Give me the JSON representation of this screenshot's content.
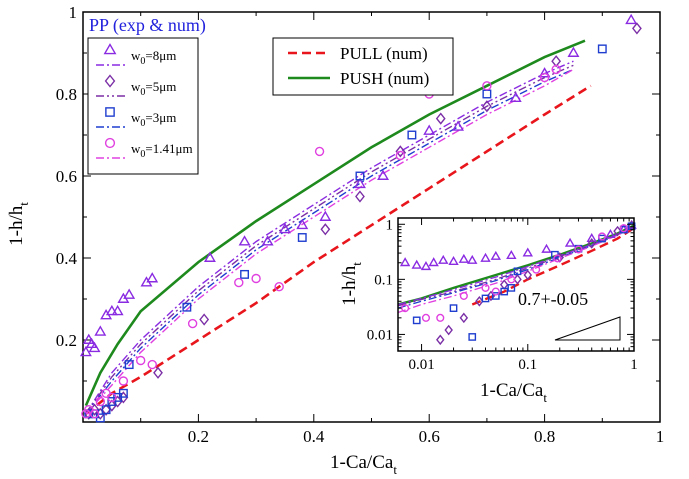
{
  "chart_data": {
    "type": "scatter",
    "title": "PP (exp & num)",
    "xlabel_main": "1-Ca/Ca",
    "xlabel_sub": "t",
    "ylabel_main": "1-h/h",
    "ylabel_sub": "t",
    "xlim": [
      0,
      1
    ],
    "ylim": [
      0,
      1
    ],
    "xticks": [
      0.2,
      0.4,
      0.6,
      0.8,
      1
    ],
    "xtick_labels": [
      "0.2",
      "0.4",
      "0.6",
      "0.8",
      "1"
    ],
    "yticks": [
      0.2,
      0.4,
      0.6,
      0.8,
      1
    ],
    "ytick_labels": [
      "0.2",
      "0.4",
      "0.6",
      "0.8",
      "1"
    ],
    "colors": {
      "purple": "#8a2be2",
      "darkpurple": "#7b2fa6",
      "blue": "#1f3ecf",
      "magenta": "#e040e0",
      "red": "#e8161c",
      "green": "#1e8a1e"
    },
    "legend_markers": {
      "items": [
        {
          "label_pre": "w",
          "label_sub": "0",
          "label_post": "=8μm",
          "marker": "triangle",
          "color": "#8a2be2",
          "line": "dashdot"
        },
        {
          "label_pre": "w",
          "label_sub": "0",
          "label_post": "=5μm",
          "marker": "diamond",
          "color": "#7b2fa6",
          "line": "dashdotdot"
        },
        {
          "label_pre": "w",
          "label_sub": "0",
          "label_post": "=3μm",
          "marker": "square",
          "color": "#1f3ecf",
          "line": "dashdot"
        },
        {
          "label_pre": "w",
          "label_sub": "0",
          "label_post": "=1.41μm",
          "marker": "circle",
          "color": "#e040e0",
          "line": "dashdot"
        }
      ]
    },
    "legend_lines": {
      "items": [
        {
          "label": "PULL (num)",
          "color": "#e8161c",
          "style": "dashed"
        },
        {
          "label": "PUSH (num)",
          "color": "#1e8a1e",
          "style": "solid"
        }
      ]
    },
    "series": [
      {
        "marker": "triangle",
        "color": "#8a2be2",
        "x": [
          0.005,
          0.01,
          0.015,
          0.02,
          0.03,
          0.04,
          0.05,
          0.06,
          0.07,
          0.08,
          0.11,
          0.12,
          0.22,
          0.28,
          0.32,
          0.35,
          0.38,
          0.42,
          0.48,
          0.52,
          0.6,
          0.65,
          0.75,
          0.8,
          0.85,
          0.95
        ],
        "y": [
          0.17,
          0.2,
          0.19,
          0.18,
          0.22,
          0.26,
          0.27,
          0.27,
          0.3,
          0.31,
          0.34,
          0.35,
          0.4,
          0.44,
          0.44,
          0.47,
          0.48,
          0.5,
          0.58,
          0.6,
          0.71,
          0.72,
          0.79,
          0.85,
          0.9,
          0.98
        ]
      },
      {
        "marker": "diamond",
        "color": "#7b2fa6",
        "x": [
          0.01,
          0.02,
          0.03,
          0.04,
          0.05,
          0.06,
          0.07,
          0.13,
          0.21,
          0.42,
          0.48,
          0.55,
          0.62,
          0.7,
          0.82,
          0.96
        ],
        "y": [
          0.02,
          0.03,
          0.02,
          0.03,
          0.04,
          0.05,
          0.06,
          0.12,
          0.25,
          0.47,
          0.55,
          0.66,
          0.74,
          0.77,
          0.88,
          0.96
        ]
      },
      {
        "marker": "square",
        "color": "#1f3ecf",
        "x": [
          0.01,
          0.02,
          0.03,
          0.04,
          0.05,
          0.06,
          0.07,
          0.08,
          0.18,
          0.28,
          0.38,
          0.48,
          0.57,
          0.7,
          0.9
        ],
        "y": [
          0.02,
          0.02,
          0.01,
          0.03,
          0.05,
          0.06,
          0.07,
          0.14,
          0.28,
          0.36,
          0.45,
          0.6,
          0.7,
          0.8,
          0.91
        ]
      },
      {
        "marker": "circle",
        "color": "#e040e0",
        "x": [
          0.005,
          0.01,
          0.02,
          0.03,
          0.04,
          0.05,
          0.07,
          0.1,
          0.12,
          0.19,
          0.27,
          0.3,
          0.34,
          0.41,
          0.55,
          0.6,
          0.7,
          0.8,
          0.82
        ],
        "y": [
          0.02,
          0.03,
          0.02,
          0.05,
          0.07,
          0.06,
          0.1,
          0.15,
          0.14,
          0.24,
          0.34,
          0.35,
          0.33,
          0.66,
          0.65,
          0.8,
          0.82,
          0.84,
          0.86
        ]
      }
    ],
    "curves": [
      {
        "name": "PULL (num)",
        "color": "#e8161c",
        "style": "dashed",
        "x": [
          0.005,
          0.05,
          0.1,
          0.2,
          0.3,
          0.4,
          0.5,
          0.6,
          0.7,
          0.8,
          0.88
        ],
        "y": [
          0.02,
          0.07,
          0.11,
          0.2,
          0.29,
          0.39,
          0.48,
          0.57,
          0.66,
          0.75,
          0.82
        ]
      },
      {
        "name": "PUSH (num)",
        "color": "#1e8a1e",
        "style": "solid",
        "x": [
          0.005,
          0.03,
          0.06,
          0.1,
          0.2,
          0.3,
          0.4,
          0.5,
          0.6,
          0.7,
          0.8,
          0.87
        ],
        "y": [
          0.04,
          0.12,
          0.19,
          0.27,
          0.39,
          0.49,
          0.58,
          0.67,
          0.75,
          0.82,
          0.89,
          0.93
        ]
      },
      {
        "name": "w0=8μm",
        "color": "#8a2be2",
        "style": "dashdot",
        "x": [
          0.005,
          0.05,
          0.1,
          0.2,
          0.3,
          0.4,
          0.5,
          0.6,
          0.7,
          0.8,
          0.85
        ],
        "y": [
          0.02,
          0.12,
          0.2,
          0.33,
          0.44,
          0.53,
          0.62,
          0.7,
          0.78,
          0.85,
          0.88
        ]
      },
      {
        "name": "w0=5μm",
        "color": "#7b2fa6",
        "style": "dashdotdot",
        "x": [
          0.005,
          0.05,
          0.1,
          0.2,
          0.3,
          0.4,
          0.5,
          0.6,
          0.7,
          0.8,
          0.85
        ],
        "y": [
          0.02,
          0.11,
          0.19,
          0.32,
          0.43,
          0.52,
          0.61,
          0.69,
          0.77,
          0.84,
          0.87
        ]
      },
      {
        "name": "w0=3μm",
        "color": "#1f3ecf",
        "style": "dashdot",
        "x": [
          0.005,
          0.05,
          0.1,
          0.2,
          0.3,
          0.4,
          0.5,
          0.6,
          0.7,
          0.8,
          0.85
        ],
        "y": [
          0.02,
          0.1,
          0.18,
          0.31,
          0.42,
          0.51,
          0.6,
          0.68,
          0.76,
          0.83,
          0.86
        ]
      },
      {
        "name": "w0=1.41μm",
        "color": "#e040e0",
        "style": "dashdot",
        "x": [
          0.005,
          0.05,
          0.1,
          0.2,
          0.3,
          0.4,
          0.5,
          0.6,
          0.7,
          0.8,
          0.85
        ],
        "y": [
          0.02,
          0.09,
          0.17,
          0.3,
          0.41,
          0.5,
          0.59,
          0.67,
          0.75,
          0.82,
          0.86
        ]
      }
    ],
    "inset": {
      "type": "scatter",
      "scale": "log-log",
      "xlim": [
        0.006,
        1
      ],
      "ylim": [
        0.005,
        1.3
      ],
      "xticks": [
        0.01,
        0.1,
        1
      ],
      "xtick_labels": [
        "0.01",
        "0.1",
        "1"
      ],
      "yticks": [
        0.01,
        0.1,
        1
      ],
      "ytick_labels": [
        "0.01",
        "0.1",
        "1"
      ],
      "xlabel_main": "1-Ca/Ca",
      "xlabel_sub": "t",
      "ylabel_main": "1-h/h",
      "ylabel_sub": "t",
      "slope_label": "0.7+-0.05",
      "series": [
        {
          "marker": "triangle",
          "color": "#8a2be2",
          "x": [
            0.007,
            0.009,
            0.011,
            0.013,
            0.016,
            0.02,
            0.025,
            0.03,
            0.04,
            0.05,
            0.07,
            0.1,
            0.15,
            0.25,
            0.4,
            0.6,
            0.8,
            0.95
          ],
          "y": [
            0.2,
            0.18,
            0.17,
            0.2,
            0.22,
            0.21,
            0.23,
            0.22,
            0.24,
            0.26,
            0.27,
            0.3,
            0.35,
            0.45,
            0.55,
            0.65,
            0.8,
            0.95
          ]
        },
        {
          "marker": "diamond",
          "color": "#7b2fa6",
          "x": [
            0.015,
            0.018,
            0.025,
            0.035,
            0.045,
            0.06,
            0.08,
            0.1,
            0.2,
            0.4,
            0.7,
            0.95
          ],
          "y": [
            0.008,
            0.012,
            0.02,
            0.04,
            0.05,
            0.08,
            0.1,
            0.12,
            0.25,
            0.45,
            0.75,
            0.95
          ]
        },
        {
          "marker": "square",
          "color": "#1f3ecf",
          "x": [
            0.009,
            0.02,
            0.03,
            0.04,
            0.05,
            0.06,
            0.07,
            0.08,
            0.18,
            0.3,
            0.5,
            0.8,
            0.95
          ],
          "y": [
            0.018,
            0.03,
            0.009,
            0.045,
            0.05,
            0.06,
            0.07,
            0.14,
            0.28,
            0.36,
            0.55,
            0.8,
            0.92
          ]
        },
        {
          "marker": "circle",
          "color": "#e040e0",
          "x": [
            0.007,
            0.011,
            0.015,
            0.025,
            0.04,
            0.05,
            0.07,
            0.12,
            0.19,
            0.3,
            0.5,
            0.8
          ],
          "y": [
            0.03,
            0.02,
            0.02,
            0.05,
            0.07,
            0.06,
            0.1,
            0.15,
            0.24,
            0.35,
            0.6,
            0.85
          ]
        }
      ],
      "curves": [
        {
          "color": "#e8161c",
          "style": "dashed",
          "x": [
            0.03,
            0.06,
            0.1,
            0.2,
            0.4,
            0.7,
            1.0
          ],
          "y": [
            0.035,
            0.06,
            0.1,
            0.18,
            0.33,
            0.55,
            0.85
          ]
        },
        {
          "color": "#1e8a1e",
          "style": "solid",
          "x": [
            0.006,
            0.01,
            0.02,
            0.05,
            0.1,
            0.2,
            0.4,
            0.7,
            1.0
          ],
          "y": [
            0.035,
            0.045,
            0.07,
            0.12,
            0.18,
            0.28,
            0.45,
            0.68,
            0.95
          ]
        },
        {
          "color": "#8a2be2",
          "style": "dashdot",
          "x": [
            0.006,
            0.01,
            0.02,
            0.05,
            0.1,
            0.2,
            0.4,
            0.7,
            1.0
          ],
          "y": [
            0.035,
            0.045,
            0.065,
            0.11,
            0.17,
            0.27,
            0.43,
            0.66,
            0.92
          ]
        },
        {
          "color": "#7b2fa6",
          "style": "dashdotdot",
          "x": [
            0.006,
            0.01,
            0.02,
            0.05,
            0.1,
            0.2,
            0.4,
            0.7,
            1.0
          ],
          "y": [
            0.033,
            0.043,
            0.06,
            0.1,
            0.16,
            0.26,
            0.42,
            0.65,
            0.91
          ]
        },
        {
          "color": "#1f3ecf",
          "style": "dashdot",
          "x": [
            0.006,
            0.01,
            0.02,
            0.05,
            0.1,
            0.2,
            0.4,
            0.7,
            1.0
          ],
          "y": [
            0.03,
            0.04,
            0.057,
            0.095,
            0.15,
            0.25,
            0.41,
            0.64,
            0.9
          ]
        },
        {
          "color": "#e040e0",
          "style": "dashdot",
          "x": [
            0.006,
            0.01,
            0.02,
            0.05,
            0.1,
            0.2,
            0.4,
            0.7,
            1.0
          ],
          "y": [
            0.025,
            0.035,
            0.05,
            0.085,
            0.14,
            0.24,
            0.4,
            0.63,
            0.89
          ]
        }
      ]
    }
  }
}
